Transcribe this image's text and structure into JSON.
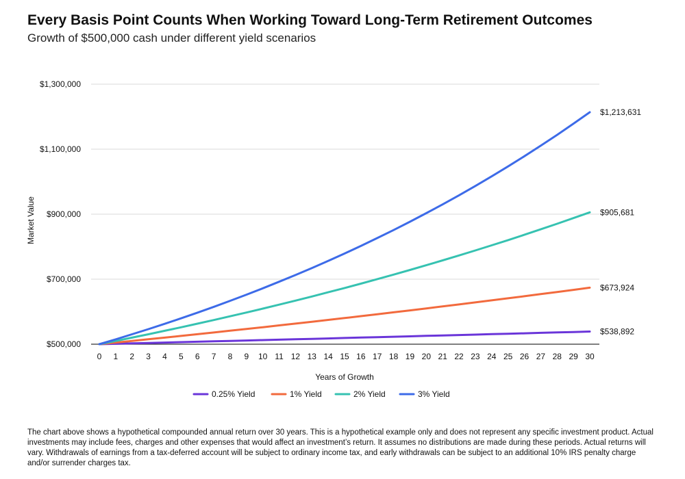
{
  "header": {
    "title": "Every Basis Point Counts When Working Toward Long-Term Retirement Outcomes",
    "subtitle": "Growth of $500,000 cash under different yield scenarios"
  },
  "footnote": "The chart above shows a hypothetical compounded annual return over 30 years. This is a hypothetical example only and does not represent any specific investment product. Actual investments may include fees, charges and other expenses that would affect an investment’s return. It assumes no distributions are made during these periods. Actual returns will vary. Withdrawals of earnings from a tax-deferred account will be subject to ordinary income tax, and early withdrawals can be subject to an additional 10% IRS penalty charge and/or surrender charges tax.",
  "chart_data": {
    "type": "line",
    "xlabel": "Years of Growth",
    "ylabel": "Market Value",
    "ylim": [
      500000,
      1300000
    ],
    "yticks": [
      500000,
      700000,
      900000,
      1100000,
      1300000
    ],
    "ytick_labels": [
      "$500,000",
      "$700,000",
      "$900,000",
      "$1,100,000",
      "$1,300,000"
    ],
    "x": [
      0,
      1,
      2,
      3,
      4,
      5,
      6,
      7,
      8,
      9,
      10,
      11,
      12,
      13,
      14,
      15,
      16,
      17,
      18,
      19,
      20,
      21,
      22,
      23,
      24,
      25,
      26,
      27,
      28,
      29,
      30
    ],
    "grid": "horizontal",
    "legend_position": "bottom",
    "series": [
      {
        "name": "0.25% Yield",
        "color": "#6a35d9",
        "end_label": "$538,892",
        "values": [
          500000,
          501250,
          502503,
          503760,
          505019,
          506281,
          507547,
          508816,
          510088,
          511363,
          512642,
          513923,
          515208,
          516496,
          517787,
          519082,
          520379,
          521680,
          522984,
          524292,
          525603,
          526917,
          528234,
          529555,
          530878,
          532205,
          533536,
          534870,
          536207,
          537547,
          538892
        ]
      },
      {
        "name": "1% Yield",
        "color": "#f26a3d",
        "end_label": "$673,924",
        "values": [
          500000,
          505000,
          510050,
          515151,
          520302,
          525505,
          530760,
          536068,
          541428,
          546843,
          552311,
          557834,
          563413,
          569047,
          574737,
          580484,
          586289,
          592152,
          598074,
          604055,
          610095,
          616196,
          622358,
          628582,
          634868,
          641216,
          647628,
          654105,
          660646,
          667252,
          673924
        ]
      },
      {
        "name": "2% Yield",
        "color": "#36c2b1",
        "end_label": "$905,681",
        "values": [
          500000,
          510000,
          520200,
          530604,
          541216,
          552040,
          563081,
          574343,
          585830,
          597546,
          609497,
          621687,
          634121,
          646803,
          659739,
          672934,
          686393,
          700121,
          714123,
          728406,
          742974,
          757833,
          772990,
          788450,
          804219,
          820303,
          836709,
          853443,
          870512,
          887922,
          905681
        ]
      },
      {
        "name": "3% Yield",
        "color": "#3d6be8",
        "end_label": "$1,213,631",
        "values": [
          500000,
          515000,
          530450,
          546364,
          562754,
          579637,
          597026,
          614937,
          633385,
          652387,
          671958,
          692117,
          712880,
          734267,
          756295,
          778984,
          802353,
          826424,
          851216,
          876753,
          903056,
          930147,
          958052,
          986793,
          1016397,
          1046889,
          1078296,
          1110645,
          1143964,
          1178283,
          1213631
        ]
      }
    ]
  }
}
